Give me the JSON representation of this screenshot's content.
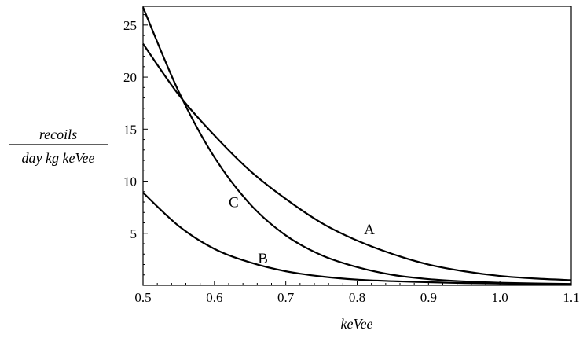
{
  "chart_data": {
    "type": "line",
    "xlabel": "keVee",
    "ylabel_numerator": "recoils",
    "ylabel_denominator": "day kg keVee",
    "xlim": [
      0.5,
      1.1
    ],
    "ylim": [
      0,
      26.8
    ],
    "grid": false,
    "x_ticks": [
      0.5,
      0.6,
      0.7,
      0.8,
      0.9,
      1.0,
      1.1
    ],
    "x_tick_labels": [
      "0.5",
      "0.6",
      "0.7",
      "0.8",
      "0.9",
      "1.0",
      "1.1"
    ],
    "y_ticks": [
      5,
      10,
      15,
      20,
      25
    ],
    "y_tick_labels": [
      "5",
      "10",
      "15",
      "20",
      "25"
    ],
    "series": [
      {
        "name": "A",
        "x": [
          0.5,
          0.55,
          0.6,
          0.65,
          0.7,
          0.75,
          0.8,
          0.85,
          0.9,
          0.95,
          1.0,
          1.05,
          1.1
        ],
        "y": [
          23.2,
          18.3,
          14.4,
          11.0,
          8.3,
          6.0,
          4.3,
          3.0,
          2.0,
          1.35,
          0.9,
          0.65,
          0.5
        ]
      },
      {
        "name": "B",
        "x": [
          0.5,
          0.55,
          0.6,
          0.65,
          0.7,
          0.75,
          0.8,
          0.85,
          0.9,
          0.95,
          1.0,
          1.05,
          1.1
        ],
        "y": [
          8.9,
          5.7,
          3.5,
          2.2,
          1.35,
          0.85,
          0.55,
          0.4,
          0.3,
          0.22,
          0.17,
          0.13,
          0.1
        ]
      },
      {
        "name": "C",
        "x": [
          0.5,
          0.55,
          0.6,
          0.65,
          0.7,
          0.75,
          0.8,
          0.85,
          0.9,
          0.95,
          1.0,
          1.05,
          1.1
        ],
        "y": [
          26.7,
          18.6,
          12.3,
          7.8,
          4.8,
          2.9,
          1.75,
          1.0,
          0.6,
          0.38,
          0.25,
          0.18,
          0.13
        ]
      }
    ],
    "annotations": [
      {
        "text": "A",
        "x": 0.817,
        "y": 4.9
      },
      {
        "text": "B",
        "x": 0.668,
        "y": 2.1
      },
      {
        "text": "C",
        "x": 0.627,
        "y": 7.5
      }
    ]
  }
}
